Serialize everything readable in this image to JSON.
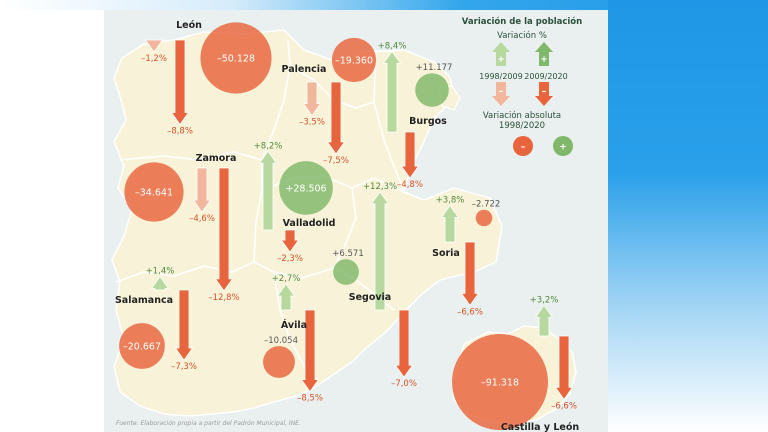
{
  "legend": {
    "title": "Variación de la población",
    "pct_title": "Variación %",
    "period_a": "1998/2009",
    "period_b": "2009/2020",
    "abs_title_1": "Variación absoluta",
    "abs_title_2": "1998/2020",
    "plus": "+",
    "minus": "–",
    "colors": {
      "increase": "#7fb86a",
      "decrease": "#e8643c",
      "increase_light": "#b7d9a0",
      "decrease_light": "#f2b69d"
    }
  },
  "provinces": [
    {
      "name": "León",
      "pct_1998_2009": "–1,2%",
      "pct_2009_2020": "–8,8%",
      "abs": "–50.128",
      "abs_value": -50128
    },
    {
      "name": "Palencia",
      "pct_1998_2009": "–3,5%",
      "pct_2009_2020": "–7,5%",
      "abs": "–19.360",
      "abs_value": -19360
    },
    {
      "name": "Burgos",
      "pct_1998_2009": "+8,4%",
      "pct_2009_2020": "–4,8%",
      "abs": "+11.177",
      "abs_value": 11177
    },
    {
      "name": "Zamora",
      "pct_1998_2009": "–4,6%",
      "pct_2009_2020": "–12,8%",
      "abs": "–34.641",
      "abs_value": -34641
    },
    {
      "name": "Valladolid",
      "pct_1998_2009": "+8,2%",
      "pct_2009_2020": "–2,3%",
      "abs": "+28.506",
      "abs_value": 28506
    },
    {
      "name": "Soria",
      "pct_1998_2009": "+3,8%",
      "pct_2009_2020": "–6,6%",
      "abs": "–2.722",
      "abs_value": -2722
    },
    {
      "name": "Segovia",
      "pct_1998_2009": "+12,3%",
      "pct_2009_2020": "–7,0%",
      "abs": "+6.571",
      "abs_value": 6571
    },
    {
      "name": "Salamanca",
      "pct_1998_2009": "+1,4%",
      "pct_2009_2020": "–7,3%",
      "abs": "–20.667",
      "abs_value": -20667
    },
    {
      "name": "Ávila",
      "pct_1998_2009": "+2,7%",
      "pct_2009_2020": "–8,5%",
      "abs": "–10.054",
      "abs_value": -10054
    },
    {
      "name": "Castilla y León",
      "pct_1998_2009": "+3,2%",
      "pct_2009_2020": "–6,6%",
      "abs": "–91.318",
      "abs_value": -91318
    }
  ],
  "source": "Fuente: Elaboración propia a partir del Padrón Municipal, INE."
}
